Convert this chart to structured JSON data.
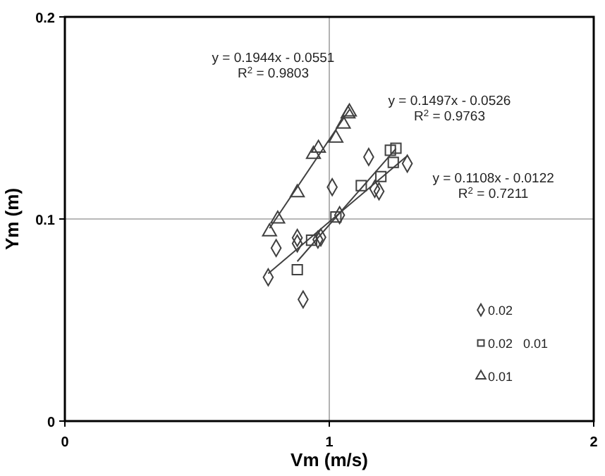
{
  "chart_data": {
    "type": "scatter",
    "xlabel": "Vm (m/s)",
    "ylabel": "Ym (m)",
    "xlim": [
      0,
      2
    ],
    "xticks": [
      0,
      1,
      2
    ],
    "ylim": [
      0,
      0.2
    ],
    "yticks": [
      0,
      0.1,
      0.2
    ],
    "grid": true,
    "legend": "bottom right",
    "series": [
      {
        "name": "0.02",
        "color": "#404040",
        "marker": "diamond",
        "x": [
          0.769,
          0.799,
          0.879,
          0.879,
          0.901,
          0.957,
          0.968,
          1.011,
          1.039,
          1.149,
          1.172,
          1.188,
          1.295
        ],
        "values": [
          0.0712,
          0.0856,
          0.0907,
          0.0879,
          0.0602,
          0.0898,
          0.0909,
          0.1158,
          0.1019,
          0.1307,
          0.1149,
          0.1137,
          0.1274
        ]
      },
      {
        "name": "0.02   0.01",
        "color": "#404040",
        "marker": "square",
        "x": [
          0.879,
          0.933,
          1.025,
          1.121,
          1.195,
          1.242,
          1.231,
          1.252
        ],
        "values": [
          0.0749,
          0.0895,
          0.101,
          0.1165,
          0.121,
          0.128,
          0.134,
          0.135
        ]
      },
      {
        "name": "0.01",
        "color": "#404040",
        "marker": "triangle",
        "x": [
          0.774,
          0.805,
          0.879,
          0.94,
          0.959,
          1.025,
          1.053,
          1.071,
          1.076
        ],
        "values": [
          0.0937,
          0.1,
          0.113,
          0.132,
          0.135,
          0.14,
          0.147,
          0.152,
          0.153
        ]
      },
      {
        "type": "line",
        "color": "#404040",
        "marker": "none",
        "x": [
          0.774,
          1.076
        ],
        "values": [
          0.0954,
          0.1541
        ]
      },
      {
        "type": "line",
        "color": "#404040",
        "marker": "none",
        "x": [
          0.879,
          1.252
        ],
        "values": [
          0.079,
          0.1348
        ]
      },
      {
        "type": "line",
        "color": "#404040",
        "marker": "none",
        "x": [
          0.769,
          1.295
        ],
        "values": [
          0.073,
          0.1313
        ]
      }
    ],
    "annotations": [
      "y = 0.1944x - 0.0551",
      "R$^{2}$ = 0.9803",
      "y = 0.1497x - 0.0526",
      "R$^{2}$ = 0.9763",
      "y = 0.1108x - 0.0122",
      "R$^{2}$ = 0.7211"
    ]
  }
}
